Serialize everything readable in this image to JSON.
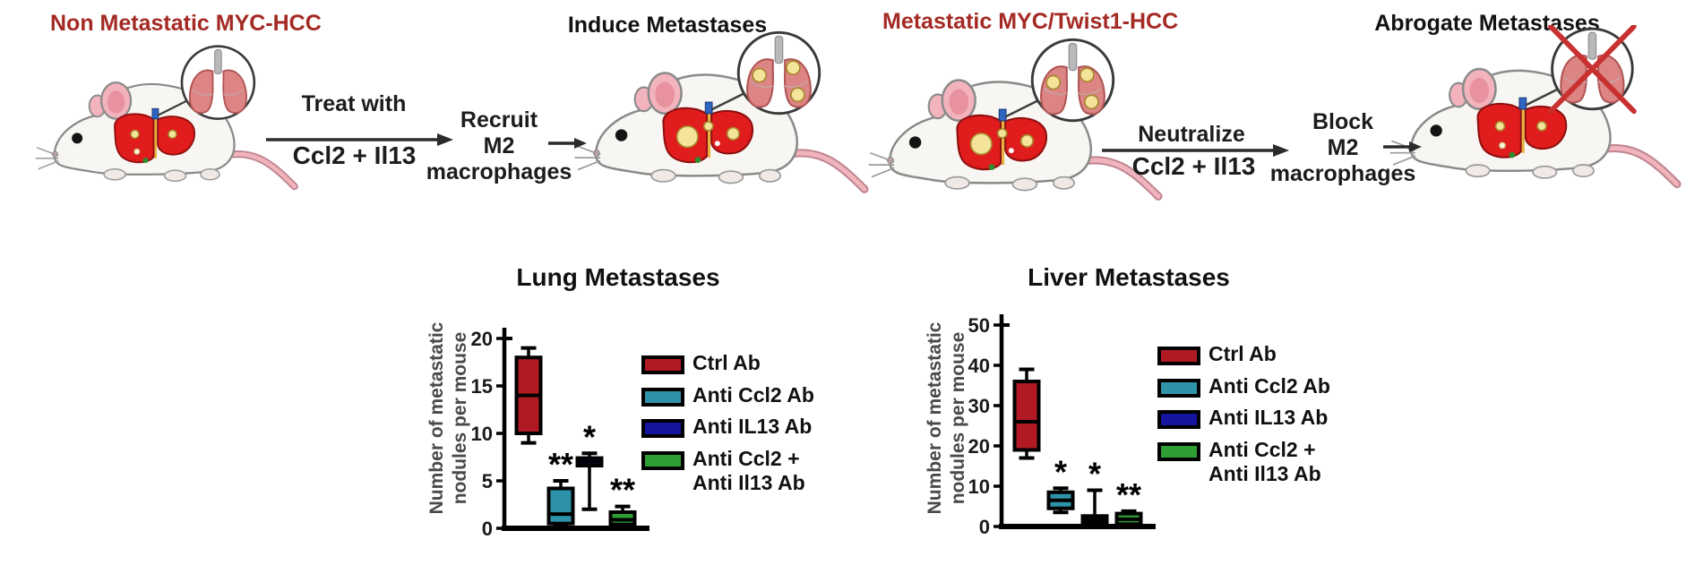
{
  "figure": {
    "panels": {
      "left": {
        "title": "Non Metastatic MYC-HCC",
        "arrow_label_top": "Treat with",
        "arrow_label_bottom": "Ccl2 + Il13",
        "step_lines": "Recruit\nM2\nmacrophages",
        "outcome_title": "Induce Metastases"
      },
      "right": {
        "title": "Metastatic MYC/Twist1-HCC",
        "arrow_label_top": "Neutralize",
        "arrow_label_bottom": "Ccl2 + Il13",
        "step_lines": "Block\nM2\nmacrophages",
        "outcome_title": "Abrogate Metastases"
      }
    },
    "icons": {
      "mouse": "mouse-icon",
      "lung_magnifier": "lung-magnifier-icon",
      "metastasis_nodule": "nodule-icon",
      "abrogation_cross": "red-cross-icon",
      "process_arrow": "right-arrow-icon"
    },
    "colors": {
      "panel_title_red": "#a42a24",
      "ctrl_ab": "#b11a22",
      "anti_ccl2_ab": "#2e93a8",
      "anti_il13_ab": "#14149e",
      "anti_combo_ab": "#2f9e33",
      "significance": "#000000"
    }
  },
  "chart_data": [
    {
      "type": "box",
      "title": "Lung Metastases",
      "ylabel": "Number of metastatic\nnodules per mouse",
      "xlabel": "",
      "ylim": [
        0,
        20
      ],
      "yticks": [
        0,
        5,
        10,
        15,
        20
      ],
      "grid": false,
      "legend_position": "right",
      "groups": [
        {
          "label": "Ctrl Ab",
          "color": "#b11a22",
          "whisker_low": 9,
          "q1": 10,
          "median": 14,
          "q3": 18,
          "whisker_high": 19,
          "significance": ""
        },
        {
          "label": "Anti Ccl2 Ab",
          "color": "#2e93a8",
          "whisker_low": 0.2,
          "q1": 0.5,
          "median": 1.5,
          "q3": 4.2,
          "whisker_high": 5,
          "significance": "**"
        },
        {
          "label": "Anti IL13 Ab",
          "color": "#14149e",
          "whisker_low": 2,
          "q1": 6.6,
          "median": 7,
          "q3": 7.4,
          "whisker_high": 7.9,
          "significance": "*"
        },
        {
          "label": "Anti  Ccl2 +\nAnti Il13 Ab",
          "color": "#2f9e33",
          "whisker_low": 0.2,
          "q1": 0.4,
          "median": 0.9,
          "q3": 1.7,
          "whisker_high": 2.3,
          "significance": "**"
        }
      ]
    },
    {
      "type": "box",
      "title": "Liver Metastases",
      "ylabel": "Number of metastatic\nnodules per mouse",
      "xlabel": "",
      "ylim": [
        0,
        50
      ],
      "yticks": [
        0,
        10,
        20,
        30,
        40,
        50
      ],
      "grid": false,
      "legend_position": "right",
      "groups": [
        {
          "label": "Ctrl Ab",
          "color": "#b11a22",
          "whisker_low": 17,
          "q1": 19,
          "median": 26,
          "q3": 36,
          "whisker_high": 39,
          "significance": ""
        },
        {
          "label": "Anti Ccl2 Ab",
          "color": "#2e93a8",
          "whisker_low": 3.5,
          "q1": 4.5,
          "median": 6.5,
          "q3": 8.5,
          "whisker_high": 9.5,
          "significance": "*"
        },
        {
          "label": "Anti IL13 Ab",
          "color": "#14149e",
          "whisker_low": 0.5,
          "q1": 1,
          "median": 1.8,
          "q3": 2.6,
          "whisker_high": 9,
          "significance": "*"
        },
        {
          "label": "Anti  Ccl2 +\nAnti Il13 Ab",
          "color": "#2f9e33",
          "whisker_low": 0.3,
          "q1": 0.6,
          "median": 1.8,
          "q3": 3.2,
          "whisker_high": 3.8,
          "significance": "**"
        }
      ]
    }
  ]
}
